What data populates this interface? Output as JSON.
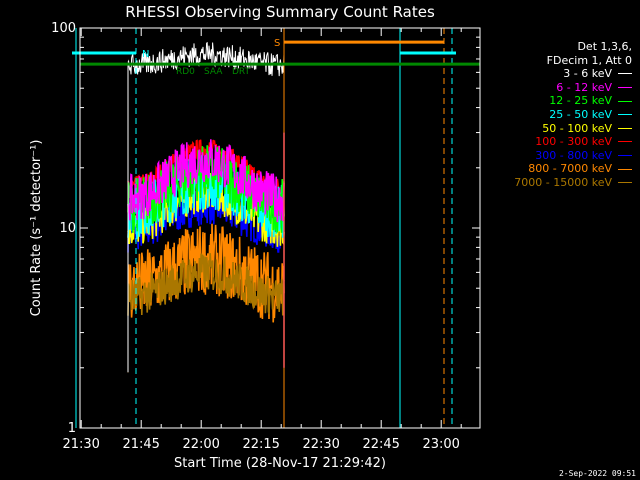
{
  "chart_data": {
    "type": "line",
    "title": "RHESSI Observing Summary Count Rates",
    "xlabel": "Start Time (28-Nov-17 21:29:42)",
    "ylabel": "Count Rate (s⁻¹ detector⁻¹)",
    "yscale": "log",
    "ylim": [
      1,
      100
    ],
    "xlim_minutes": [
      0,
      100
    ],
    "x_ticks": [
      "21:30",
      "21:45",
      "22:00",
      "22:15",
      "22:30",
      "22:45",
      "23:00"
    ],
    "y_ticks": [
      "1",
      "10",
      "100"
    ],
    "grid": false,
    "legend_position": "right",
    "legend_header": [
      "Det 1,3,6,",
      "FDecim 1, Att 0"
    ],
    "series": [
      {
        "name": "3 - 6 keV",
        "color": "#ffffff",
        "level": 65,
        "peak": 74,
        "noise": 0.06
      },
      {
        "name": "6 - 12 keV",
        "color": "#ff00ff",
        "level": 14,
        "peak": 22,
        "noise": 0.12
      },
      {
        "name": "12 - 25 keV",
        "color": "#00ff00",
        "level": 13,
        "peak": 19,
        "noise": 0.14
      },
      {
        "name": "25 - 50 keV",
        "color": "#00ffff",
        "level": 12,
        "peak": 17,
        "noise": 0.14
      },
      {
        "name": "50 - 100 keV",
        "color": "#ffff00",
        "level": 10,
        "peak": 15,
        "noise": 0.1
      },
      {
        "name": "100 - 300 keV",
        "color": "#ff0000",
        "level": 16,
        "peak": 25,
        "noise": 0.05
      },
      {
        "name": "300 - 800 keV",
        "color": "#0000ff",
        "level": 9.5,
        "peak": 13,
        "noise": 0.1
      },
      {
        "name": "800 - 7000 keV",
        "color": "#ff8800",
        "level": 5,
        "peak": 7,
        "noise": 0.18
      },
      {
        "name": "7000 - 15000 keV",
        "color": "#aa7700",
        "level": 4.5,
        "peak": 6,
        "noise": 0.1
      }
    ],
    "data_window_minutes": [
      12,
      51
    ],
    "annotations": {
      "N": {
        "x_start": -2,
        "x_end": 14,
        "y": 75,
        "color": "#00ffff"
      },
      "S": {
        "x_start": 51,
        "x_end": 91,
        "y": 85,
        "color": "#ff8800"
      },
      "upper_cyan_segment": {
        "x_start": 80,
        "x_end": 94,
        "y": 75
      },
      "green_bar_y": 66,
      "flag_labels": [
        "RD0",
        "SAA",
        "DRT"
      ],
      "cyan_vertical_solid": [
        -1,
        80
      ],
      "cyan_vertical_dashed": [
        14,
        93
      ],
      "orange_vertical_solid": [
        51
      ],
      "orange_vertical_dashed": [
        91
      ]
    }
  },
  "footer": {
    "date_stamp": "2-Sep-2022 09:51"
  }
}
